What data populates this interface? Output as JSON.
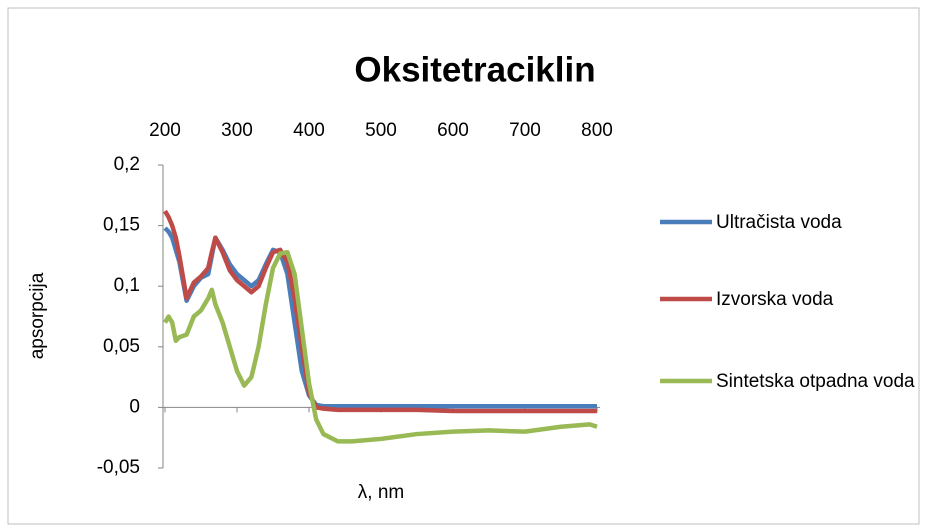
{
  "chart_data": {
    "type": "line",
    "title": "Oksitetraciklin",
    "x_label": "λ, nm",
    "y_label": "apsorpcija",
    "x": [
      200,
      205,
      210,
      215,
      220,
      230,
      240,
      250,
      260,
      265,
      270,
      280,
      290,
      300,
      310,
      320,
      330,
      340,
      350,
      360,
      370,
      380,
      390,
      400,
      410,
      420,
      440,
      460,
      500,
      550,
      600,
      650,
      700,
      750,
      790,
      800
    ],
    "series": [
      {
        "name": "Ultračista voda",
        "color": "#4a7ebb",
        "values": [
          0.148,
          0.145,
          0.14,
          0.13,
          0.12,
          0.088,
          0.1,
          0.107,
          0.11,
          0.125,
          0.14,
          0.13,
          0.118,
          0.11,
          0.105,
          0.1,
          0.105,
          0.118,
          0.13,
          0.128,
          0.11,
          0.07,
          0.03,
          0.01,
          0.002,
          0.001,
          0.001,
          0.001,
          0.001,
          0.001,
          0.001,
          0.001,
          0.001,
          0.001,
          0.001,
          0.001
        ]
      },
      {
        "name": "Izvorska voda",
        "color": "#be4b48",
        "values": [
          0.162,
          0.157,
          0.15,
          0.14,
          0.125,
          0.09,
          0.103,
          0.108,
          0.115,
          0.128,
          0.14,
          0.128,
          0.113,
          0.105,
          0.1,
          0.095,
          0.1,
          0.115,
          0.128,
          0.13,
          0.12,
          0.09,
          0.05,
          0.012,
          0,
          -0.001,
          -0.002,
          -0.002,
          -0.002,
          -0.002,
          -0.003,
          -0.003,
          -0.003,
          -0.003,
          -0.003,
          -0.003
        ]
      },
      {
        "name": "Sintetska otpadna voda",
        "color": "#98b954",
        "values": [
          0.07,
          0.075,
          0.07,
          0.055,
          0.058,
          0.06,
          0.075,
          0.08,
          0.09,
          0.097,
          0.085,
          0.07,
          0.05,
          0.03,
          0.018,
          0.025,
          0.05,
          0.085,
          0.115,
          0.127,
          0.128,
          0.11,
          0.065,
          0.02,
          -0.01,
          -0.022,
          -0.028,
          -0.028,
          -0.026,
          -0.022,
          -0.02,
          -0.019,
          -0.02,
          -0.016,
          -0.014,
          -0.016
        ]
      }
    ],
    "xlim": [
      200,
      800
    ],
    "xticks": [
      200,
      300,
      400,
      500,
      600,
      700,
      800
    ],
    "ylim": [
      -0.05,
      0.2
    ],
    "yticks": [
      {
        "value": -0.05,
        "label": "-0,05"
      },
      0,
      {
        "value": 0.05,
        "label": "0,05"
      },
      {
        "value": 0.1,
        "label": "0,1"
      },
      {
        "value": 0.15,
        "label": "0,15"
      },
      {
        "value": 0.2,
        "label": "0,2"
      }
    ],
    "legend": "right"
  }
}
